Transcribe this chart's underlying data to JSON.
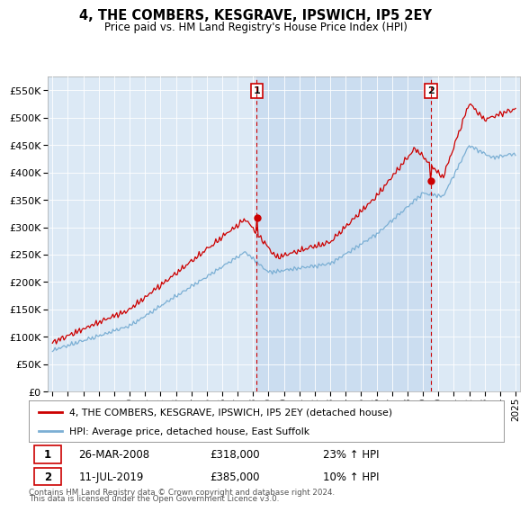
{
  "title": "4, THE COMBERS, KESGRAVE, IPSWICH, IP5 2EY",
  "subtitle": "Price paid vs. HM Land Registry's House Price Index (HPI)",
  "legend_line1": "4, THE COMBERS, KESGRAVE, IPSWICH, IP5 2EY (detached house)",
  "legend_line2": "HPI: Average price, detached house, East Suffolk",
  "marker1_date": "26-MAR-2008",
  "marker1_price": 318000,
  "marker1_pricefmt": "£318,000",
  "marker1_label": "23% ↑ HPI",
  "marker1_x": 2008.23,
  "marker2_date": "11-JUL-2019",
  "marker2_price": 385000,
  "marker2_pricefmt": "£385,000",
  "marker2_label": "10% ↑ HPI",
  "marker2_x": 2019.53,
  "footnote1": "Contains HM Land Registry data © Crown copyright and database right 2024.",
  "footnote2": "This data is licensed under the Open Government Licence v3.0.",
  "hpi_color": "#7bafd4",
  "price_color": "#cc0000",
  "background_color": "#dce9f5",
  "shade_color": "#c5d8ee",
  "ylim": [
    0,
    575000
  ],
  "xlim": [
    1994.7,
    2025.3
  ],
  "yticks": [
    0,
    50000,
    100000,
    150000,
    200000,
    250000,
    300000,
    350000,
    400000,
    450000,
    500000,
    550000
  ]
}
